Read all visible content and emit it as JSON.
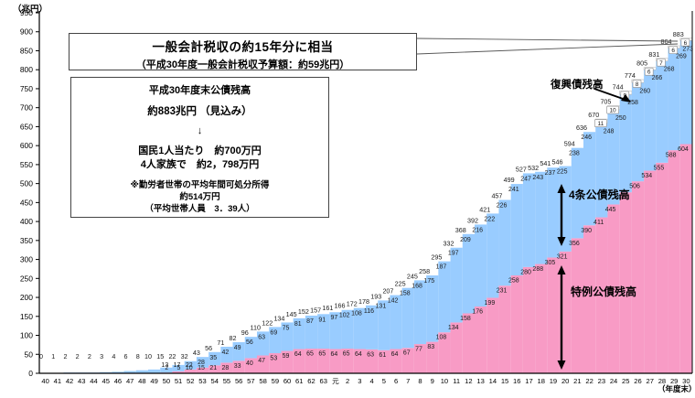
{
  "y_axis_unit": "（兆円）",
  "x_axis_unit": "（年度末）",
  "annotation_box1": {
    "line1": "一般会計税収の約15年分に相当",
    "line2": "（平成30年度一般会計税収予算額：約59兆円）"
  },
  "annotation_box2": {
    "lines": [
      "平成30年度末公債残高",
      "約883兆円 （見込み）",
      "↓",
      "国民1人当たり　約700万円",
      "4人家族で　約2，798万円",
      "※勤労者世帯の平均年間可処分所得",
      "約514万円",
      "（平均世帯人員　3．39人）"
    ]
  },
  "area_labels": {
    "reconstruction": "復興債残高",
    "construction": "4条公債残高",
    "special": "特例公債残高"
  },
  "colors": {
    "construction_fill": "#99ccff",
    "special_fill": "#f89bc5",
    "reconstruction_fill": "#ffffff",
    "axis": "#000000",
    "label_text": "#1a1a1a"
  },
  "chart_data": {
    "type": "bar",
    "stacked": true,
    "ylabel": "（兆円）",
    "xlabel": "（年度末）",
    "ylim": [
      0,
      950
    ],
    "ytick_step": 50,
    "grid": false,
    "categories": [
      "40",
      "41",
      "42",
      "43",
      "44",
      "45",
      "46",
      "47",
      "48",
      "49",
      "50",
      "51",
      "52",
      "53",
      "54",
      "55",
      "56",
      "57",
      "58",
      "59",
      "60",
      "61",
      "62",
      "63",
      "元",
      "2",
      "3",
      "4",
      "5",
      "6",
      "7",
      "8",
      "9",
      "10",
      "11",
      "12",
      "13",
      "14",
      "15",
      "16",
      "17",
      "18",
      "19",
      "20",
      "21",
      "22",
      "23",
      "24",
      "25",
      "26",
      "27",
      "28",
      "29",
      "30"
    ],
    "totals": [
      0,
      1,
      2,
      2,
      2,
      3,
      4,
      6,
      8,
      10,
      15,
      22,
      32,
      43,
      56,
      71,
      82,
      96,
      110,
      122,
      134,
      145,
      152,
      157,
      161,
      166,
      172,
      178,
      193,
      207,
      225,
      245,
      258,
      295,
      332,
      368,
      392,
      421,
      457,
      499,
      527,
      532,
      541,
      546,
      594,
      636,
      670,
      705,
      744,
      774,
      805,
      831,
      864,
      883
    ],
    "series": [
      {
        "name": "特例公債残高",
        "values": [
          0,
          0,
          0,
          0,
          0,
          0,
          0,
          0,
          0,
          0,
          2,
          5,
          10,
          15,
          21,
          28,
          33,
          40,
          47,
          53,
          59,
          64,
          65,
          65,
          64,
          65,
          64,
          63,
          61,
          64,
          67,
          77,
          83,
          108,
          134,
          158,
          176,
          199,
          231,
          258,
          280,
          288,
          305,
          321,
          356,
          390,
          411,
          445,
          477,
          506,
          534,
          555,
          588,
          604
        ]
      },
      {
        "name": "4条公債残高",
        "values": [
          0.2,
          1,
          2,
          2,
          2,
          3,
          4,
          6,
          8,
          10,
          13,
          17,
          22,
          28,
          35,
          42,
          49,
          56,
          63,
          69,
          75,
          81,
          87,
          91,
          97,
          102,
          108,
          116,
          131,
          142,
          158,
          168,
          175,
          187,
          197,
          209,
          216,
          222,
          226,
          241,
          247,
          243,
          237,
          225,
          238,
          246,
          248,
          250,
          258,
          260,
          266,
          268,
          269,
          273
        ]
      },
      {
        "name": "復興債残高",
        "values": [
          0,
          0,
          0,
          0,
          0,
          0,
          0,
          0,
          0,
          0,
          0,
          0,
          0,
          0,
          0,
          0,
          0,
          0,
          0,
          0,
          0,
          0,
          0,
          0,
          0,
          0,
          0,
          0,
          0,
          0,
          0,
          0,
          0,
          0,
          0,
          0,
          0,
          0,
          0,
          0,
          0,
          0,
          0,
          0,
          0,
          0,
          11,
          10,
          9,
          8,
          6,
          7,
          6,
          6
        ]
      }
    ],
    "label_rules": {
      "segment_labels_from_index": 10
    }
  }
}
